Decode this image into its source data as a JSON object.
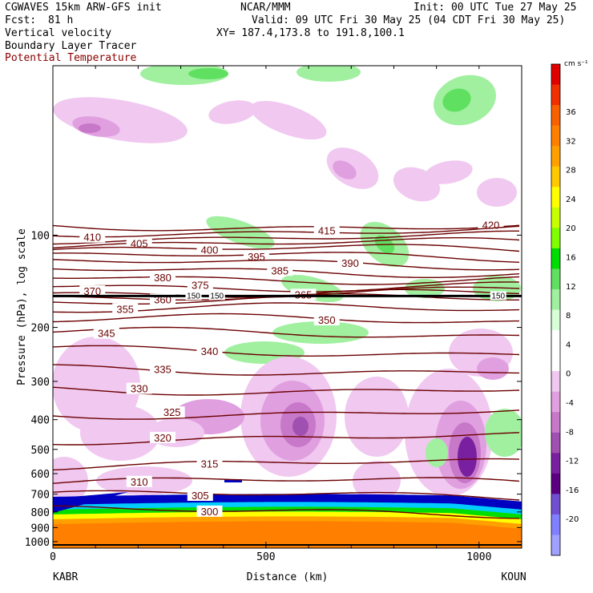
{
  "header": {
    "model": "CGWAVES 15km ARW-GFS init",
    "center": "NCAR/MMM",
    "init": "Init: 00 UTC Tue 27 May 25",
    "fcst_label": "Fcst:",
    "fcst_value": "81 h",
    "valid": "Valid: 09 UTC Fri 30 May 25 (04 CDT Fri 30 May 25)",
    "xy": "XY= 187.4,173.8 to 191.8,100.1",
    "field1": "Vertical velocity",
    "field2": "Boundary Layer Tracer",
    "field3": "Potential Temperature"
  },
  "chart_data": {
    "type": "heatmap",
    "title": "Vertical velocity",
    "xlabel": "Distance (km)",
    "ylabel": "Pressure (hPa), log scale",
    "xlim": [
      0,
      1100
    ],
    "ylim": [
      1050,
      28
    ],
    "y_scale": "log",
    "x_ticks": [
      0,
      500,
      1000
    ],
    "x_tick_labels": [
      "0",
      "500",
      "1000"
    ],
    "y_ticks": [
      100,
      200,
      300,
      400,
      500,
      600,
      700,
      800,
      900,
      1000
    ],
    "y_tick_labels": [
      "100",
      "200",
      "300",
      "400",
      "500",
      "600",
      "700",
      "800",
      "900",
      "1000"
    ],
    "x_end_labels": {
      "left": "KABR",
      "right": "KOUN"
    },
    "colorbar": {
      "unit": "cm s⁻¹",
      "labels": [
        "36",
        "32",
        "28",
        "24",
        "20",
        "16",
        "12",
        "8",
        "4",
        "0",
        "-4",
        "-8",
        "-12",
        "-16",
        "-20"
      ],
      "colors": [
        "#e00000",
        "#f03000",
        "#f86000",
        "#ff8000",
        "#ffa000",
        "#ffc800",
        "#ffff00",
        "#c8ff00",
        "#80ff00",
        "#00dd00",
        "#60e060",
        "#a0f0a0",
        "#d8ffd8",
        "#ffffff",
        "#ffffff",
        "#f0c8f0",
        "#e0a0e0",
        "#c878c8",
        "#a050b0",
        "#7820a0",
        "#5a0080",
        "#7050d0",
        "#8080ff",
        "#a0a0ff"
      ]
    },
    "theta_contours": [
      {
        "value": 420,
        "label": "420"
      },
      {
        "value": 415,
        "label": "415"
      },
      {
        "value": 410,
        "label": "410"
      },
      {
        "value": 405,
        "label": "405"
      },
      {
        "value": 400,
        "label": "400"
      },
      {
        "value": 395,
        "label": "395"
      },
      {
        "value": 390,
        "label": "390"
      },
      {
        "value": 385,
        "label": "385"
      },
      {
        "value": 380,
        "label": "380"
      },
      {
        "value": 375,
        "label": "375"
      },
      {
        "value": 370,
        "label": "370"
      },
      {
        "value": 365,
        "label": "365"
      },
      {
        "value": 360,
        "label": "360"
      },
      {
        "value": 355,
        "label": "355"
      },
      {
        "value": 350,
        "label": "350"
      },
      {
        "value": 345,
        "label": "345"
      },
      {
        "value": 340,
        "label": "340"
      },
      {
        "value": 335,
        "label": "335"
      },
      {
        "value": 330,
        "label": "330"
      },
      {
        "value": 325,
        "label": "325"
      },
      {
        "value": 320,
        "label": "320"
      },
      {
        "value": 315,
        "label": "315"
      },
      {
        "value": 310,
        "label": "310"
      },
      {
        "value": 305,
        "label": "305"
      },
      {
        "value": 300,
        "label": "300"
      }
    ],
    "tracer_label": "150"
  }
}
